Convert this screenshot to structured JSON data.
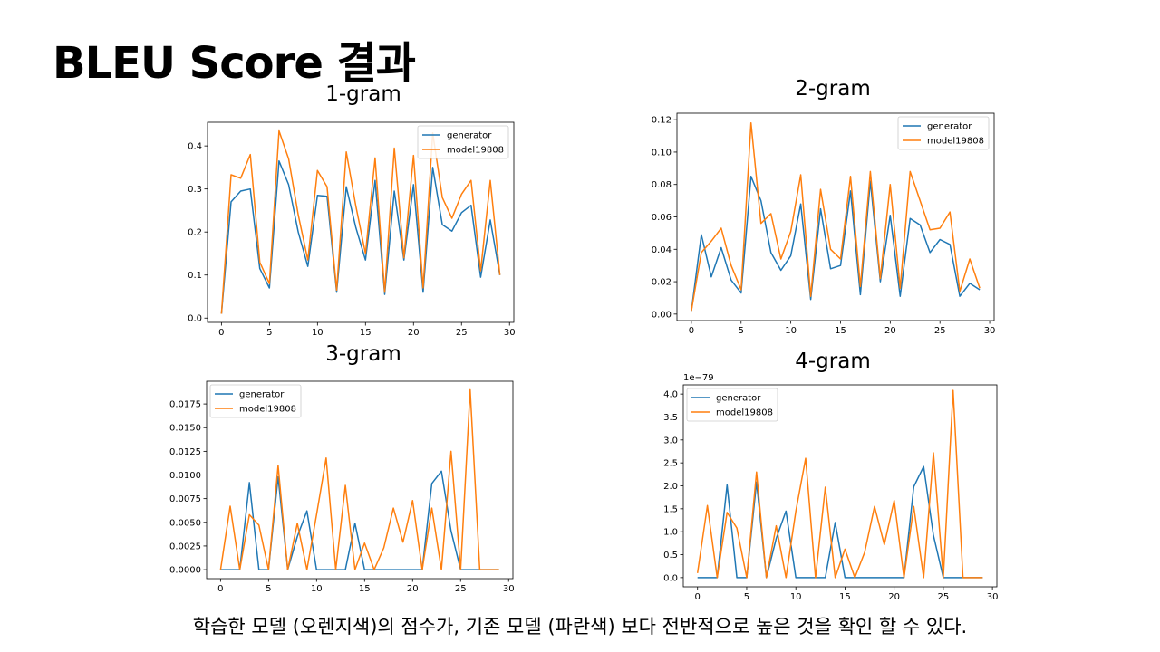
{
  "slide": {
    "title": "BLEU Score 결과",
    "caption": "학습한 모델 (오렌지색)의 점수가, 기존 모델 (파란색) 보다 전반적으로 높은 것을 확인 할 수 있다."
  },
  "colors": {
    "generator": "#1f77b4",
    "model": "#ff7f0e"
  },
  "chart_data": [
    {
      "type": "line",
      "title": "1-gram",
      "xlim": [
        -1.45,
        30.45
      ],
      "ylim": [
        -0.01,
        0.455
      ],
      "xticks": [
        0,
        5,
        10,
        15,
        20,
        25,
        30
      ],
      "xtick_labels": [
        "0",
        "5",
        "10",
        "15",
        "20",
        "25",
        "30"
      ],
      "yticks": [
        0.0,
        0.1,
        0.2,
        0.3,
        0.4
      ],
      "ytick_labels": [
        "0.0",
        "0.1",
        "0.2",
        "0.3",
        "0.4"
      ],
      "offset_label": "",
      "legend": "top-right",
      "grid": false,
      "x": [
        0,
        1,
        2,
        3,
        4,
        5,
        6,
        7,
        8,
        9,
        10,
        11,
        12,
        13,
        14,
        15,
        16,
        17,
        18,
        19,
        20,
        21,
        22,
        23,
        24,
        25,
        26,
        27,
        28,
        29
      ],
      "series": [
        {
          "name": "generator",
          "values": [
            0.01,
            0.27,
            0.295,
            0.3,
            0.115,
            0.07,
            0.365,
            0.31,
            0.2,
            0.12,
            0.285,
            0.283,
            0.06,
            0.305,
            0.21,
            0.135,
            0.32,
            0.055,
            0.295,
            0.135,
            0.31,
            0.06,
            0.35,
            0.217,
            0.202,
            0.245,
            0.262,
            0.095,
            0.228,
            0.1
          ]
        },
        {
          "name": "model19808",
          "values": [
            0.01,
            0.333,
            0.325,
            0.38,
            0.13,
            0.08,
            0.435,
            0.37,
            0.24,
            0.135,
            0.343,
            0.305,
            0.065,
            0.386,
            0.26,
            0.15,
            0.372,
            0.06,
            0.395,
            0.14,
            0.378,
            0.07,
            0.43,
            0.28,
            0.232,
            0.288,
            0.32,
            0.11,
            0.32,
            0.1
          ]
        }
      ]
    },
    {
      "type": "line",
      "title": "2-gram",
      "xlim": [
        -1.45,
        30.45
      ],
      "ylim": [
        -0.004,
        0.124
      ],
      "xticks": [
        0,
        5,
        10,
        15,
        20,
        25,
        30
      ],
      "xtick_labels": [
        "0",
        "5",
        "10",
        "15",
        "20",
        "25",
        "30"
      ],
      "yticks": [
        0.0,
        0.02,
        0.04,
        0.06,
        0.08,
        0.1,
        0.12
      ],
      "ytick_labels": [
        "0.00",
        "0.02",
        "0.04",
        "0.06",
        "0.08",
        "0.10",
        "0.12"
      ],
      "offset_label": "",
      "legend": "top-right",
      "grid": false,
      "x": [
        0,
        1,
        2,
        3,
        4,
        5,
        6,
        7,
        8,
        9,
        10,
        11,
        12,
        13,
        14,
        15,
        16,
        17,
        18,
        19,
        20,
        21,
        22,
        23,
        24,
        25,
        26,
        27,
        28,
        29
      ],
      "series": [
        {
          "name": "generator",
          "values": [
            0.002,
            0.049,
            0.023,
            0.041,
            0.021,
            0.013,
            0.085,
            0.07,
            0.038,
            0.027,
            0.036,
            0.068,
            0.009,
            0.065,
            0.028,
            0.03,
            0.076,
            0.012,
            0.082,
            0.02,
            0.061,
            0.011,
            0.059,
            0.055,
            0.038,
            0.046,
            0.043,
            0.011,
            0.019,
            0.015
          ]
        },
        {
          "name": "model19808",
          "values": [
            0.002,
            0.038,
            0.045,
            0.053,
            0.03,
            0.015,
            0.118,
            0.056,
            0.062,
            0.034,
            0.051,
            0.086,
            0.011,
            0.077,
            0.04,
            0.034,
            0.085,
            0.017,
            0.088,
            0.022,
            0.08,
            0.016,
            0.088,
            0.07,
            0.052,
            0.053,
            0.063,
            0.014,
            0.034,
            0.016
          ]
        }
      ]
    },
    {
      "type": "line",
      "title": "3-gram",
      "xlim": [
        -1.45,
        30.45
      ],
      "ylim": [
        -0.00095,
        0.0199
      ],
      "xticks": [
        0,
        5,
        10,
        15,
        20,
        25,
        30
      ],
      "xtick_labels": [
        "0",
        "5",
        "10",
        "15",
        "20",
        "25",
        "30"
      ],
      "yticks": [
        0.0,
        0.0025,
        0.005,
        0.0075,
        0.01,
        0.0125,
        0.015,
        0.0175
      ],
      "ytick_labels": [
        "0.0000",
        "0.0025",
        "0.0050",
        "0.0075",
        "0.0100",
        "0.0125",
        "0.0150",
        "0.0175"
      ],
      "offset_label": "",
      "legend": "top-left",
      "grid": false,
      "x": [
        0,
        1,
        2,
        3,
        4,
        5,
        6,
        7,
        8,
        9,
        10,
        11,
        12,
        13,
        14,
        15,
        16,
        17,
        18,
        19,
        20,
        21,
        22,
        23,
        24,
        25,
        26,
        27,
        28,
        29
      ],
      "series": [
        {
          "name": "generator",
          "values": [
            0,
            0,
            0,
            0.0092,
            0,
            0,
            0.0098,
            0,
            0.0035,
            0.0062,
            0,
            0,
            0,
            0,
            0.0049,
            0,
            0,
            0,
            0,
            0,
            0,
            0,
            0.0091,
            0.0104,
            0.0041,
            0,
            0,
            0,
            0,
            0
          ]
        },
        {
          "name": "model19808",
          "values": [
            0,
            0.0067,
            0,
            0.0058,
            0.0047,
            0,
            0.011,
            0,
            0.0049,
            0,
            0.0058,
            0.0118,
            0,
            0.0089,
            0,
            0.0028,
            0,
            0.0023,
            0.0065,
            0.0029,
            0.0073,
            0,
            0.0065,
            0,
            0.0125,
            0,
            0.019,
            0,
            0,
            0
          ]
        }
      ]
    },
    {
      "type": "line",
      "title": "4-gram",
      "xlim": [
        -1.45,
        30.45
      ],
      "ylim": [
        -0.2,
        4.2
      ],
      "xticks": [
        0,
        5,
        10,
        15,
        20,
        25,
        30
      ],
      "xtick_labels": [
        "0",
        "5",
        "10",
        "15",
        "20",
        "25",
        "30"
      ],
      "yticks": [
        0.0,
        0.5,
        1.0,
        1.5,
        2.0,
        2.5,
        3.0,
        3.5,
        4.0
      ],
      "ytick_labels": [
        "0.0",
        "0.5",
        "1.0",
        "1.5",
        "2.0",
        "2.5",
        "3.0",
        "3.5",
        "4.0"
      ],
      "offset_label": "1e−79",
      "legend": "top-left",
      "grid": false,
      "x": [
        0,
        1,
        2,
        3,
        4,
        5,
        6,
        7,
        8,
        9,
        10,
        11,
        12,
        13,
        14,
        15,
        16,
        17,
        18,
        19,
        20,
        21,
        22,
        23,
        24,
        25,
        26,
        27,
        28,
        29
      ],
      "series": [
        {
          "name": "generator",
          "values": [
            0,
            0,
            0,
            2.02,
            0,
            0,
            2.08,
            0,
            0.85,
            1.45,
            0,
            0,
            0,
            0,
            1.2,
            0,
            0,
            0,
            0,
            0,
            0,
            0,
            1.98,
            2.42,
            0.92,
            0,
            0,
            0,
            0,
            0
          ]
        },
        {
          "name": "model19808",
          "values": [
            0.1,
            1.57,
            0,
            1.42,
            1.08,
            0,
            2.3,
            0,
            1.13,
            0,
            1.45,
            2.6,
            0,
            1.97,
            0,
            0.62,
            0,
            0.55,
            1.55,
            0.72,
            1.68,
            0,
            1.55,
            0,
            2.72,
            0,
            4.08,
            0,
            0,
            0
          ]
        }
      ]
    }
  ]
}
